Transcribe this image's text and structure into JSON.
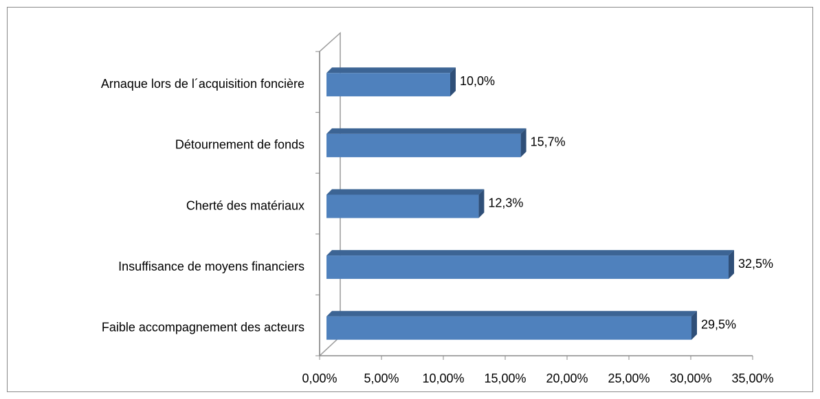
{
  "chart_data": {
    "type": "bar",
    "orientation": "horizontal",
    "categories": [
      "Arnaque lors de l´acquisition foncière",
      "Détournement de fonds",
      "Cherté des matériaux",
      "Insuffisance de moyens financiers",
      "Faible accompagnement des acteurs"
    ],
    "values": [
      10.0,
      15.7,
      12.3,
      32.5,
      29.5
    ],
    "value_labels": [
      "10,0%",
      "15,7%",
      "12,3%",
      "32,5%",
      "29,5%"
    ],
    "color": "#4f81bd",
    "xlim": [
      0,
      35
    ],
    "xticks": [
      {
        "value": 0,
        "label": "0,00%"
      },
      {
        "value": 5,
        "label": "5,00%"
      },
      {
        "value": 10,
        "label": "10,00%"
      },
      {
        "value": 15,
        "label": "15,00%"
      },
      {
        "value": 20,
        "label": "20,00%"
      },
      {
        "value": 25,
        "label": "25,00%"
      },
      {
        "value": 30,
        "label": "30,00%"
      },
      {
        "value": 35,
        "label": "35,00%"
      }
    ],
    "grid": false
  }
}
